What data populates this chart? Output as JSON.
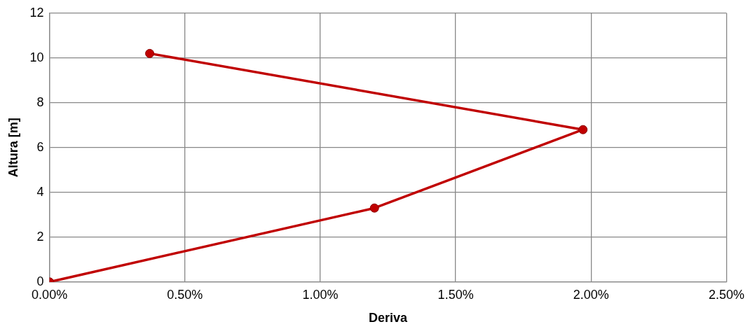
{
  "chart_data": {
    "type": "line",
    "xlabel": "Deriva",
    "ylabel": "Altura [m]",
    "x": [
      0,
      1.2,
      1.97,
      0.37
    ],
    "series": [
      {
        "color": "#c00000",
        "values": [
          0,
          3.3,
          6.8,
          10.2
        ]
      }
    ],
    "xlim": [
      0,
      2.5
    ],
    "xticks": [
      {
        "value": 0,
        "label": "0.00%"
      },
      {
        "value": 0.5,
        "label": "0.50%"
      },
      {
        "value": 1,
        "label": "1.00%"
      },
      {
        "value": 1.5,
        "label": "1.50%"
      },
      {
        "value": 2,
        "label": "2.00%"
      },
      {
        "value": 2.5,
        "label": "2.50%"
      }
    ],
    "ylim": [
      0,
      12
    ],
    "yticks": [
      0,
      2,
      4,
      6,
      8,
      10,
      12
    ],
    "grid": true,
    "marker": "circle",
    "line_style": "solid"
  }
}
